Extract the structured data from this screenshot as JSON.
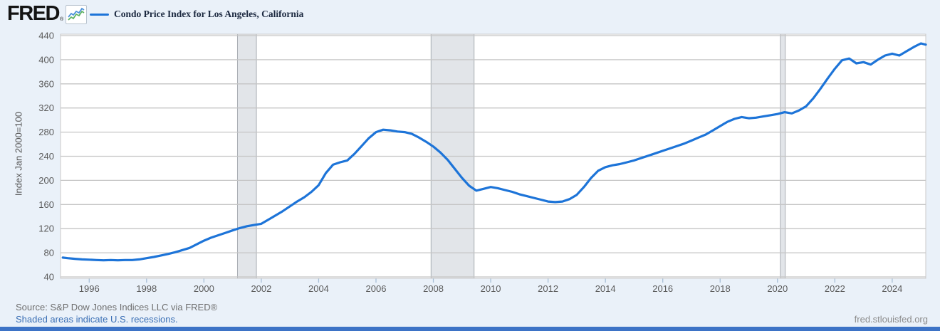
{
  "header": {
    "logo_text": "FRED",
    "registered_mark": "®",
    "series_title": "Condo Price Index for Los Angeles, California"
  },
  "footer": {
    "source": "Source: S&P Dow Jones Indices LLC via FRED®",
    "recessions_note": "Shaded areas indicate U.S. recessions.",
    "site_link": "fred.stlouisfed.org"
  },
  "colors": {
    "page_background": "#eaf1f9",
    "plot_background": "#ffffff",
    "line": "#1d74d8",
    "gridline": "#c5c5c5",
    "plot_border": "#c9c9c9",
    "recession_fill": "#e2e5e9",
    "recession_edge": "#a8adb3",
    "tick_mark": "#a7bed6",
    "axis_label": "#5b5b5b",
    "link_blue": "#3a6fb5",
    "bottom_bar": "#3d73c6",
    "icon_spark_blue": "#4a90d9",
    "icon_spark_green": "#5fb364"
  },
  "chart_data": {
    "type": "line",
    "title": "Condo Price Index for Los Angeles, California",
    "xlabel": "",
    "ylabel": "Index Jan 2000=100",
    "legend_position": "top-left",
    "grid": "horizontal",
    "xlim": [
      1995.0,
      2025.17
    ],
    "ylim": [
      40,
      440
    ],
    "x_ticks": [
      1996,
      1998,
      2000,
      2002,
      2004,
      2006,
      2008,
      2010,
      2012,
      2014,
      2016,
      2018,
      2020,
      2022,
      2024
    ],
    "y_ticks": [
      40,
      80,
      120,
      160,
      200,
      240,
      280,
      320,
      360,
      400,
      440
    ],
    "recessions": [
      [
        2001.17,
        2001.83
      ],
      [
        2007.92,
        2009.42
      ],
      [
        2020.1,
        2020.27
      ]
    ],
    "series": [
      {
        "name": "Condo Price Index for Los Angeles, California",
        "x": [
          1995.08,
          1995.25,
          1995.5,
          1995.75,
          1996,
          1996.25,
          1996.5,
          1996.75,
          1997,
          1997.25,
          1997.5,
          1997.75,
          1998,
          1998.25,
          1998.5,
          1998.75,
          1999,
          1999.25,
          1999.5,
          1999.75,
          2000,
          2000.25,
          2000.5,
          2000.75,
          2001,
          2001.25,
          2001.5,
          2001.75,
          2002,
          2002.25,
          2002.5,
          2002.75,
          2003,
          2003.25,
          2003.5,
          2003.75,
          2004,
          2004.25,
          2004.5,
          2004.75,
          2005,
          2005.25,
          2005.5,
          2005.75,
          2006,
          2006.25,
          2006.5,
          2006.75,
          2007,
          2007.25,
          2007.5,
          2007.75,
          2008,
          2008.25,
          2008.5,
          2008.75,
          2009,
          2009.25,
          2009.5,
          2009.75,
          2010,
          2010.25,
          2010.5,
          2010.75,
          2011,
          2011.25,
          2011.5,
          2011.75,
          2012,
          2012.25,
          2012.5,
          2012.75,
          2013,
          2013.25,
          2013.5,
          2013.75,
          2014,
          2014.25,
          2014.5,
          2014.75,
          2015,
          2015.25,
          2015.5,
          2015.75,
          2016,
          2016.25,
          2016.5,
          2016.75,
          2017,
          2017.25,
          2017.5,
          2017.75,
          2018,
          2018.25,
          2018.5,
          2018.75,
          2019,
          2019.25,
          2019.5,
          2019.75,
          2020,
          2020.25,
          2020.5,
          2020.75,
          2021,
          2021.25,
          2021.5,
          2021.75,
          2022,
          2022.25,
          2022.5,
          2022.75,
          2023,
          2023.25,
          2023.5,
          2023.75,
          2024,
          2024.25,
          2024.5,
          2024.75,
          2025,
          2025.17
        ],
        "y": [
          72,
          71,
          70,
          69,
          68.5,
          68,
          67.5,
          68,
          67.5,
          68,
          68,
          69,
          71,
          73,
          75.5,
          78,
          81,
          84.5,
          88,
          94,
          100,
          105,
          109,
          113,
          117,
          121,
          124,
          126,
          128,
          135,
          142,
          149,
          157,
          165,
          172,
          181,
          192,
          212,
          226,
          230,
          233,
          244,
          257,
          270,
          280,
          284,
          283,
          281,
          280,
          277,
          271,
          264,
          256,
          246,
          234,
          219,
          204,
          191,
          183,
          186,
          189,
          187,
          184,
          181,
          177,
          174,
          171,
          168,
          165,
          164,
          165,
          169,
          176,
          189,
          204,
          216,
          222,
          225,
          227,
          230,
          233,
          237,
          241,
          245,
          249,
          253,
          257,
          261,
          266,
          271,
          276,
          283,
          290,
          297,
          302,
          305,
          303,
          304,
          306,
          308,
          310,
          313,
          311,
          316,
          323,
          336,
          352,
          369,
          385,
          399,
          402,
          394,
          396,
          392,
          400,
          407,
          410,
          407,
          414,
          421,
          427,
          425
        ]
      }
    ]
  }
}
